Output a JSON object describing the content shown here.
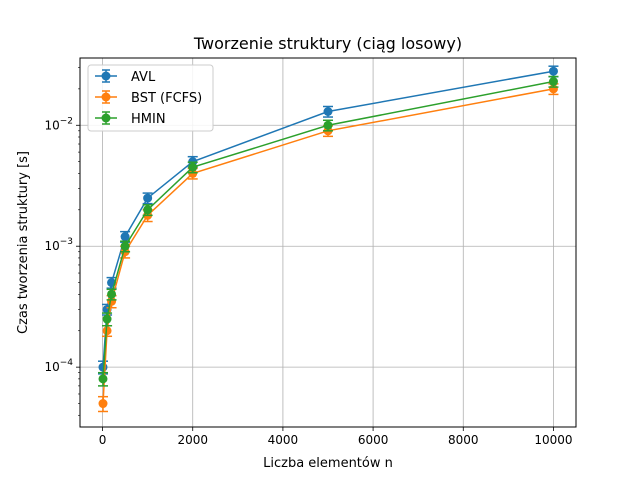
{
  "chart_data": {
    "type": "line",
    "title": "Tworzenie struktury (ciąg losowy)",
    "xlabel": "Liczba elementów n",
    "ylabel": "Czas tworzenia struktury [s]",
    "xlim": [
      -500,
      10500
    ],
    "ylim": [
      3.2e-05,
      0.036
    ],
    "yscale": "log",
    "grid": true,
    "legend_position": "top-left",
    "x_ticks": [
      {
        "value": 0,
        "label": "0"
      },
      {
        "value": 2000,
        "label": "2000"
      },
      {
        "value": 4000,
        "label": "4000"
      },
      {
        "value": 6000,
        "label": "6000"
      },
      {
        "value": 8000,
        "label": "8000"
      },
      {
        "value": 10000,
        "label": "10000"
      }
    ],
    "y_ticks": [
      {
        "value": 0.0001,
        "base": "10",
        "exp": "−4"
      },
      {
        "value": 0.001,
        "base": "10",
        "exp": "−3"
      },
      {
        "value": 0.01,
        "base": "10",
        "exp": "−2"
      }
    ],
    "x": [
      10,
      100,
      200,
      500,
      1000,
      2000,
      5000,
      10000
    ],
    "series": [
      {
        "name": "AVL",
        "color": "#1f77b4",
        "values": [
          0.0001,
          0.0003,
          0.0005,
          0.0012,
          0.0025,
          0.005,
          0.013,
          0.028
        ],
        "errors": [
          1.2e-05,
          3e-05,
          5e-05,
          0.00012,
          0.00025,
          0.0005,
          0.0013,
          0.0028
        ]
      },
      {
        "name": "BST (FCFS)",
        "color": "#ff7f0e",
        "values": [
          5e-05,
          0.0002,
          0.00035,
          0.0009,
          0.0018,
          0.004,
          0.009,
          0.02
        ],
        "errors": [
          7e-06,
          2e-05,
          4e-05,
          0.0001,
          0.0002,
          0.0004,
          0.0009,
          0.002
        ]
      },
      {
        "name": "HMIN",
        "color": "#2ca02c",
        "values": [
          8e-05,
          0.00025,
          0.0004,
          0.001,
          0.002,
          0.0045,
          0.01,
          0.023
        ],
        "errors": [
          1e-05,
          3e-05,
          4e-05,
          0.0001,
          0.0002,
          0.00045,
          0.001,
          0.0023
        ]
      }
    ]
  }
}
